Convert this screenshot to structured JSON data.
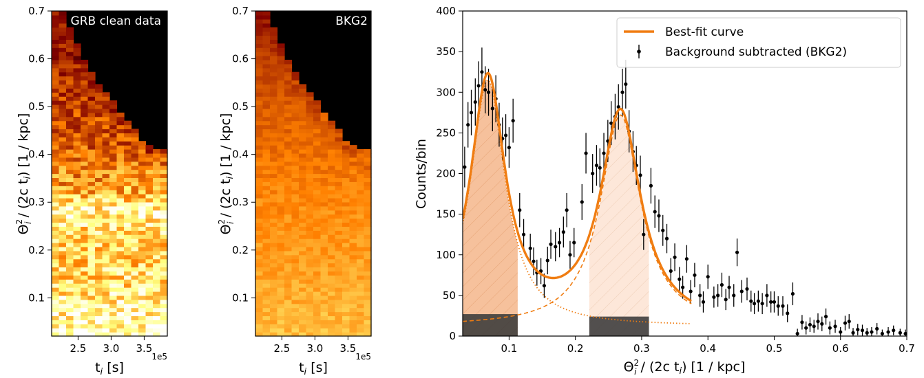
{
  "chart_data": [
    {
      "type": "heatmap",
      "title": "GRB clean data",
      "xlabel": "t_i [s]",
      "ylabel": "Θ_i^2 / (2c t_i) [1 / kpc]",
      "x_ticks": [
        "2.5",
        "3.0",
        "3.5"
      ],
      "x_tick_values": [
        2.5,
        3.0,
        3.5
      ],
      "x_offset_label": "1e5",
      "xlim": [
        2.1,
        3.85
      ],
      "y_ticks": [
        "0.1",
        "0.2",
        "0.3",
        "0.4",
        "0.5",
        "0.6",
        "0.7"
      ],
      "y_tick_values": [
        0.1,
        0.2,
        0.3,
        0.4,
        0.5,
        0.6,
        0.7
      ],
      "ylim": [
        0.02,
        0.7
      ],
      "colormap": "afmhot",
      "n_cols": 16,
      "n_rows": 80,
      "envelope_top": [
        0.7,
        0.7,
        0.67,
        0.63,
        0.6,
        0.57,
        0.55,
        0.53,
        0.51,
        0.49,
        0.47,
        0.45,
        0.43,
        0.42,
        0.41,
        0.41
      ],
      "intensity_profile": [
        {
          "y": 0.03,
          "v": 0.9
        },
        {
          "y": 0.1,
          "v": 0.78
        },
        {
          "y": 0.18,
          "v": 0.68
        },
        {
          "y": 0.25,
          "v": 0.72
        },
        {
          "y": 0.28,
          "v": 0.85
        },
        {
          "y": 0.32,
          "v": 0.6
        },
        {
          "y": 0.4,
          "v": 0.45
        },
        {
          "y": 0.5,
          "v": 0.38
        },
        {
          "y": 0.6,
          "v": 0.32
        },
        {
          "y": 0.7,
          "v": 0.28
        }
      ],
      "noise": 0.3,
      "seed": 7
    },
    {
      "type": "heatmap",
      "title": "BKG2",
      "xlabel": "t_i [s]",
      "ylabel": "Θ_i^2 / (2c t_i) [1 / kpc]",
      "x_ticks": [
        "2.5",
        "3.0",
        "3.5"
      ],
      "x_tick_values": [
        2.5,
        3.0,
        3.5
      ],
      "x_offset_label": "1e5",
      "xlim": [
        2.1,
        3.85
      ],
      "y_ticks": [
        "0.1",
        "0.2",
        "0.3",
        "0.4",
        "0.5",
        "0.6",
        "0.7"
      ],
      "y_tick_values": [
        0.1,
        0.2,
        0.3,
        0.4,
        0.5,
        0.6,
        0.7
      ],
      "ylim": [
        0.02,
        0.7
      ],
      "colormap": "afmhot",
      "n_cols": 16,
      "n_rows": 80,
      "envelope_top": [
        0.7,
        0.7,
        0.67,
        0.63,
        0.6,
        0.57,
        0.55,
        0.53,
        0.51,
        0.49,
        0.47,
        0.45,
        0.43,
        0.42,
        0.41,
        0.41
      ],
      "intensity_profile": [
        {
          "y": 0.03,
          "v": 0.62
        },
        {
          "y": 0.15,
          "v": 0.57
        },
        {
          "y": 0.3,
          "v": 0.52
        },
        {
          "y": 0.45,
          "v": 0.45
        },
        {
          "y": 0.6,
          "v": 0.38
        },
        {
          "y": 0.7,
          "v": 0.3
        }
      ],
      "noise": 0.09,
      "seed": 23
    },
    {
      "type": "scatter",
      "xlabel": "Θ_i^2 / (2c t_i) [1 / kpc]",
      "ylabel": "Counts/bin",
      "xlim": [
        0.03,
        0.7
      ],
      "ylim": [
        0,
        400
      ],
      "x_ticks": [
        "0.1",
        "0.2",
        "0.3",
        "0.4",
        "0.5",
        "0.6",
        "0.7"
      ],
      "x_tick_values": [
        0.1,
        0.2,
        0.3,
        0.4,
        0.5,
        0.6,
        0.7
      ],
      "y_ticks": [
        "0",
        "50",
        "100",
        "150",
        "200",
        "250",
        "300",
        "350",
        "400"
      ],
      "y_tick_values": [
        0,
        50,
        100,
        150,
        200,
        250,
        300,
        350,
        400
      ],
      "grid": false,
      "legend_position": "top-right",
      "legend": [
        {
          "label": "Best-fit curve",
          "kind": "line",
          "color": "#f07d12"
        },
        {
          "label": "Background subtracted (BKG2)",
          "kind": "errorbar",
          "color": "#000000"
        }
      ],
      "peak_color": "#f07d12",
      "shaded_regions": [
        {
          "from": 0.03,
          "to": 0.113,
          "fill": "#f6c19c",
          "hatch": true,
          "base_top": 27
        },
        {
          "from": 0.221,
          "to": 0.311,
          "fill": "#fde7d9",
          "hatch": true,
          "base_top": 24
        }
      ],
      "components": {
        "peak1": {
          "amp": 303,
          "center": 0.068,
          "width": 0.032,
          "extent": [
            0.03,
            0.375
          ]
        },
        "peak2": {
          "amp": 260,
          "center": 0.268,
          "width": 0.037,
          "extent": [
            0.03,
            0.375
          ]
        },
        "baseline": {
          "a": 12,
          "slope": 0.0,
          "extent": [
            0.03,
            0.375
          ]
        }
      },
      "best_fit_extent": [
        0.03,
        0.375
      ],
      "points": [
        {
          "x": 0.033,
          "y": 208,
          "e": 25
        },
        {
          "x": 0.038,
          "y": 260,
          "e": 28
        },
        {
          "x": 0.043,
          "y": 275,
          "e": 28
        },
        {
          "x": 0.049,
          "y": 288,
          "e": 29
        },
        {
          "x": 0.054,
          "y": 308,
          "e": 30
        },
        {
          "x": 0.059,
          "y": 325,
          "e": 30
        },
        {
          "x": 0.064,
          "y": 303,
          "e": 29
        },
        {
          "x": 0.069,
          "y": 300,
          "e": 29
        },
        {
          "x": 0.075,
          "y": 280,
          "e": 28
        },
        {
          "x": 0.08,
          "y": 292,
          "e": 29
        },
        {
          "x": 0.085,
          "y": 260,
          "e": 27
        },
        {
          "x": 0.09,
          "y": 243,
          "e": 26
        },
        {
          "x": 0.095,
          "y": 247,
          "e": 26
        },
        {
          "x": 0.1,
          "y": 232,
          "e": 25
        },
        {
          "x": 0.106,
          "y": 265,
          "e": 27
        },
        {
          "x": 0.116,
          "y": 155,
          "e": 21
        },
        {
          "x": 0.122,
          "y": 125,
          "e": 19
        },
        {
          "x": 0.132,
          "y": 108,
          "e": 18
        },
        {
          "x": 0.137,
          "y": 92,
          "e": 17
        },
        {
          "x": 0.142,
          "y": 78,
          "e": 16
        },
        {
          "x": 0.148,
          "y": 80,
          "e": 16
        },
        {
          "x": 0.153,
          "y": 62,
          "e": 15
        },
        {
          "x": 0.158,
          "y": 93,
          "e": 17
        },
        {
          "x": 0.163,
          "y": 113,
          "e": 18
        },
        {
          "x": 0.17,
          "y": 110,
          "e": 18
        },
        {
          "x": 0.176,
          "y": 115,
          "e": 18
        },
        {
          "x": 0.182,
          "y": 128,
          "e": 19
        },
        {
          "x": 0.187,
          "y": 155,
          "e": 21
        },
        {
          "x": 0.192,
          "y": 100,
          "e": 17
        },
        {
          "x": 0.198,
          "y": 115,
          "e": 18
        },
        {
          "x": 0.21,
          "y": 165,
          "e": 22
        },
        {
          "x": 0.216,
          "y": 225,
          "e": 25
        },
        {
          "x": 0.226,
          "y": 200,
          "e": 24
        },
        {
          "x": 0.232,
          "y": 210,
          "e": 25
        },
        {
          "x": 0.237,
          "y": 207,
          "e": 24
        },
        {
          "x": 0.243,
          "y": 225,
          "e": 25
        },
        {
          "x": 0.249,
          "y": 240,
          "e": 26
        },
        {
          "x": 0.254,
          "y": 262,
          "e": 27
        },
        {
          "x": 0.26,
          "y": 270,
          "e": 28
        },
        {
          "x": 0.265,
          "y": 282,
          "e": 28
        },
        {
          "x": 0.271,
          "y": 300,
          "e": 29
        },
        {
          "x": 0.276,
          "y": 310,
          "e": 30
        },
        {
          "x": 0.281,
          "y": 252,
          "e": 26
        },
        {
          "x": 0.287,
          "y": 227,
          "e": 25
        },
        {
          "x": 0.292,
          "y": 210,
          "e": 24
        },
        {
          "x": 0.298,
          "y": 198,
          "e": 24
        },
        {
          "x": 0.303,
          "y": 125,
          "e": 19
        },
        {
          "x": 0.314,
          "y": 185,
          "e": 22
        },
        {
          "x": 0.32,
          "y": 153,
          "e": 20
        },
        {
          "x": 0.326,
          "y": 148,
          "e": 20
        },
        {
          "x": 0.332,
          "y": 130,
          "e": 19
        },
        {
          "x": 0.338,
          "y": 120,
          "e": 18
        },
        {
          "x": 0.344,
          "y": 80,
          "e": 16
        },
        {
          "x": 0.35,
          "y": 97,
          "e": 17
        },
        {
          "x": 0.357,
          "y": 70,
          "e": 15
        },
        {
          "x": 0.362,
          "y": 60,
          "e": 14
        },
        {
          "x": 0.368,
          "y": 95,
          "e": 17
        },
        {
          "x": 0.374,
          "y": 55,
          "e": 14
        },
        {
          "x": 0.38,
          "y": 75,
          "e": 15
        },
        {
          "x": 0.388,
          "y": 50,
          "e": 14
        },
        {
          "x": 0.393,
          "y": 42,
          "e": 13
        },
        {
          "x": 0.4,
          "y": 73,
          "e": 15
        },
        {
          "x": 0.409,
          "y": 48,
          "e": 13
        },
        {
          "x": 0.415,
          "y": 50,
          "e": 14
        },
        {
          "x": 0.421,
          "y": 63,
          "e": 15
        },
        {
          "x": 0.427,
          "y": 45,
          "e": 13
        },
        {
          "x": 0.432,
          "y": 60,
          "e": 14
        },
        {
          "x": 0.439,
          "y": 50,
          "e": 14
        },
        {
          "x": 0.444,
          "y": 103,
          "e": 17
        },
        {
          "x": 0.451,
          "y": 55,
          "e": 14
        },
        {
          "x": 0.459,
          "y": 58,
          "e": 14
        },
        {
          "x": 0.465,
          "y": 43,
          "e": 13
        },
        {
          "x": 0.47,
          "y": 40,
          "e": 13
        },
        {
          "x": 0.476,
          "y": 43,
          "e": 13
        },
        {
          "x": 0.482,
          "y": 40,
          "e": 13
        },
        {
          "x": 0.489,
          "y": 50,
          "e": 14
        },
        {
          "x": 0.495,
          "y": 42,
          "e": 13
        },
        {
          "x": 0.5,
          "y": 42,
          "e": 13
        },
        {
          "x": 0.506,
          "y": 37,
          "e": 12
        },
        {
          "x": 0.513,
          "y": 37,
          "e": 12
        },
        {
          "x": 0.52,
          "y": 28,
          "e": 11
        },
        {
          "x": 0.528,
          "y": 52,
          "e": 14
        },
        {
          "x": 0.535,
          "y": 3,
          "e": 6
        },
        {
          "x": 0.542,
          "y": 17,
          "e": 9
        },
        {
          "x": 0.548,
          "y": 10,
          "e": 8
        },
        {
          "x": 0.554,
          "y": 14,
          "e": 9
        },
        {
          "x": 0.56,
          "y": 12,
          "e": 8
        },
        {
          "x": 0.566,
          "y": 18,
          "e": 10
        },
        {
          "x": 0.572,
          "y": 15,
          "e": 9
        },
        {
          "x": 0.578,
          "y": 24,
          "e": 10
        },
        {
          "x": 0.584,
          "y": 10,
          "e": 8
        },
        {
          "x": 0.592,
          "y": 12,
          "e": 8
        },
        {
          "x": 0.6,
          "y": 5,
          "e": 6
        },
        {
          "x": 0.607,
          "y": 16,
          "e": 9
        },
        {
          "x": 0.613,
          "y": 18,
          "e": 9
        },
        {
          "x": 0.619,
          "y": 4,
          "e": 6
        },
        {
          "x": 0.626,
          "y": 8,
          "e": 7
        },
        {
          "x": 0.633,
          "y": 7,
          "e": 7
        },
        {
          "x": 0.64,
          "y": 4,
          "e": 6
        },
        {
          "x": 0.647,
          "y": 5,
          "e": 6
        },
        {
          "x": 0.655,
          "y": 9,
          "e": 7
        },
        {
          "x": 0.663,
          "y": 3,
          "e": 5
        },
        {
          "x": 0.672,
          "y": 5,
          "e": 6
        },
        {
          "x": 0.68,
          "y": 7,
          "e": 6
        },
        {
          "x": 0.69,
          "y": 4,
          "e": 5
        },
        {
          "x": 0.698,
          "y": 3,
          "e": 5
        }
      ]
    }
  ]
}
